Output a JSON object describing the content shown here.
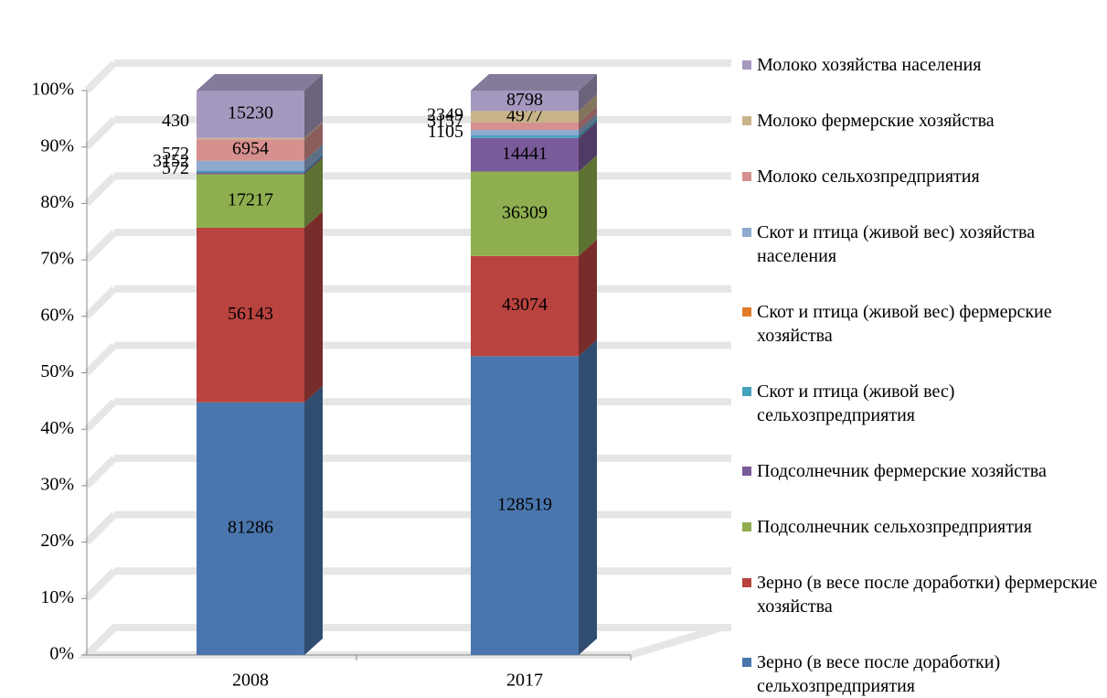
{
  "chart_data": {
    "type": "bar3d_stacked_percent",
    "categories": [
      "2008",
      "2017"
    ],
    "ylim": [
      0,
      100
    ],
    "yticks": [
      {
        "value": 0,
        "label": "0%"
      },
      {
        "value": 10,
        "label": "10%"
      },
      {
        "value": 20,
        "label": "20%"
      },
      {
        "value": 30,
        "label": "30%"
      },
      {
        "value": 40,
        "label": "40%"
      },
      {
        "value": 50,
        "label": "50%"
      },
      {
        "value": 60,
        "label": "60%"
      },
      {
        "value": 70,
        "label": "70%"
      },
      {
        "value": 80,
        "label": "80%"
      },
      {
        "value": 90,
        "label": "90%"
      },
      {
        "value": 100,
        "label": "100%"
      }
    ],
    "grid": true,
    "legend": "right",
    "series": [
      {
        "name": "Зерно (в весе после доработки) сельхозпредприятия",
        "color": "#4a76ad",
        "values": [
          81286,
          128519
        ]
      },
      {
        "name": "Зерно (в весе после доработки) фермерские хозяйства",
        "color": "#b9433f",
        "values": [
          56143,
          43074
        ]
      },
      {
        "name": "Подсолнечник сельхозпредприятия",
        "color": "#8fae4f",
        "values": [
          17217,
          36309
        ]
      },
      {
        "name": "Подсолнечник фермерские хозяйства",
        "color": "#7a5b99",
        "values": [
          572,
          14441
        ]
      },
      {
        "name": "Скот и птица (живой вес) сельхозпредприятия",
        "color": "#46a3bd",
        "values": [
          572,
          1105
        ]
      },
      {
        "name": "Скот и птица (живой вес) фермерские хозяйства",
        "color": "#e07b2c",
        "values": [
          null,
          null
        ]
      },
      {
        "name": "Скот и птица (живой вес) хозяйства населения",
        "color": "#8fa9cf",
        "values": [
          3152,
          2349
        ]
      },
      {
        "name": "Молоко сельхозпредприятия",
        "color": "#d6908e",
        "values": [
          6954,
          3157
        ]
      },
      {
        "name": "Молоко фермерские хозяйства",
        "color": "#c9b48a",
        "values": [
          430,
          4977
        ]
      },
      {
        "name": "Молоко хозяйства населения",
        "color": "#a598bf",
        "values": [
          15230,
          8798
        ]
      }
    ]
  }
}
